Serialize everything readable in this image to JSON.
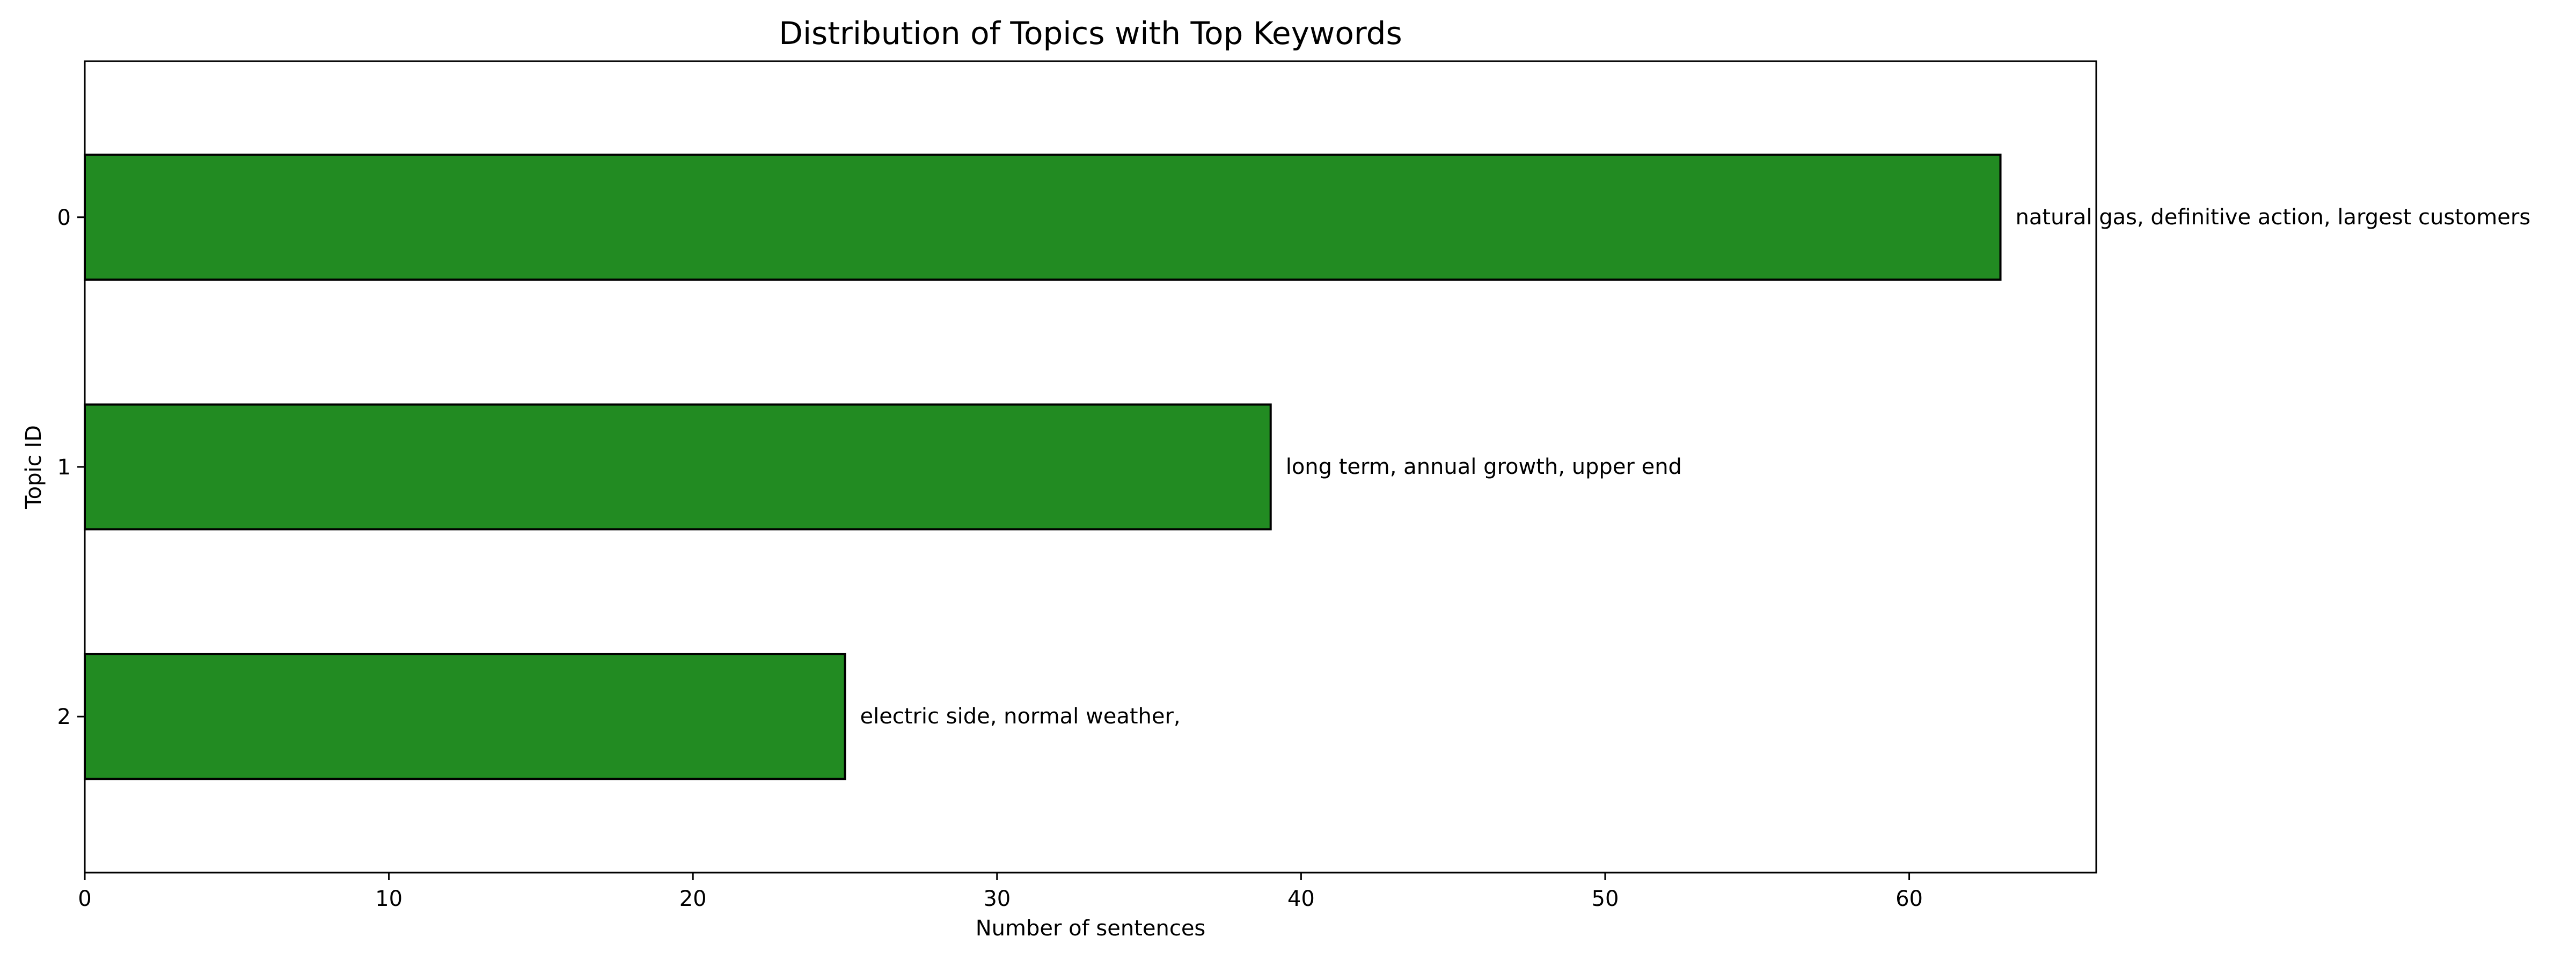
{
  "chart_data": {
    "type": "bar",
    "orientation": "horizontal",
    "title": "Distribution of Topics with Top Keywords",
    "xlabel": "Number of sentences",
    "ylabel": "Topic ID",
    "categories": [
      "0",
      "1",
      "2"
    ],
    "values": [
      63,
      39,
      25
    ],
    "annotations": [
      "natural gas, definitive action, largest customers",
      "long term, annual growth, upper end",
      "electric side, normal weather,"
    ],
    "xlim": [
      0,
      66.15
    ],
    "xticks": [
      0,
      10,
      20,
      30,
      40,
      50,
      60
    ],
    "grid": false,
    "legend": "none",
    "bar_color": "#228b22",
    "edge_color": "#000000"
  }
}
